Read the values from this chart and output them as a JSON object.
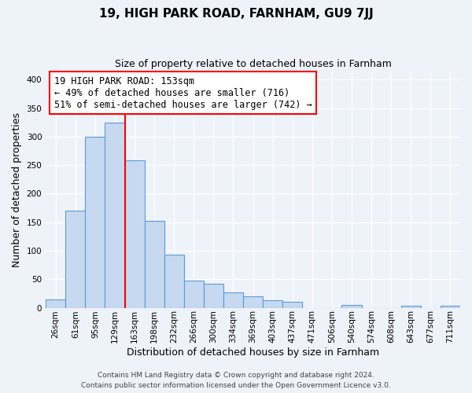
{
  "title": "19, HIGH PARK ROAD, FARNHAM, GU9 7JJ",
  "subtitle": "Size of property relative to detached houses in Farnham",
  "xlabel": "Distribution of detached houses by size in Farnham",
  "ylabel": "Number of detached properties",
  "bar_labels": [
    "26sqm",
    "61sqm",
    "95sqm",
    "129sqm",
    "163sqm",
    "198sqm",
    "232sqm",
    "266sqm",
    "300sqm",
    "334sqm",
    "369sqm",
    "403sqm",
    "437sqm",
    "471sqm",
    "506sqm",
    "540sqm",
    "574sqm",
    "608sqm",
    "643sqm",
    "677sqm",
    "711sqm"
  ],
  "bar_heights": [
    15,
    170,
    300,
    325,
    258,
    152,
    93,
    48,
    42,
    27,
    20,
    13,
    11,
    0,
    0,
    5,
    0,
    0,
    3,
    0,
    3
  ],
  "bar_color": "#c6d9f0",
  "bar_edge_color": "#5b9bd5",
  "vline_index": 4,
  "annotation_text": "19 HIGH PARK ROAD: 153sqm\n← 49% of detached houses are smaller (716)\n51% of semi-detached houses are larger (742) →",
  "annotation_box_color": "white",
  "annotation_box_edge_color": "red",
  "vline_color": "red",
  "ylim": [
    0,
    415
  ],
  "yticks": [
    0,
    50,
    100,
    150,
    200,
    250,
    300,
    350,
    400
  ],
  "footer_line1": "Contains HM Land Registry data © Crown copyright and database right 2024.",
  "footer_line2": "Contains public sector information licensed under the Open Government Licence v3.0.",
  "background_color": "#eef2f9",
  "grid_color": "white",
  "title_fontsize": 11,
  "subtitle_fontsize": 9,
  "ylabel_fontsize": 9,
  "xlabel_fontsize": 9,
  "tick_fontsize": 7.5,
  "annotation_fontsize": 8.5,
  "footer_fontsize": 6.5
}
